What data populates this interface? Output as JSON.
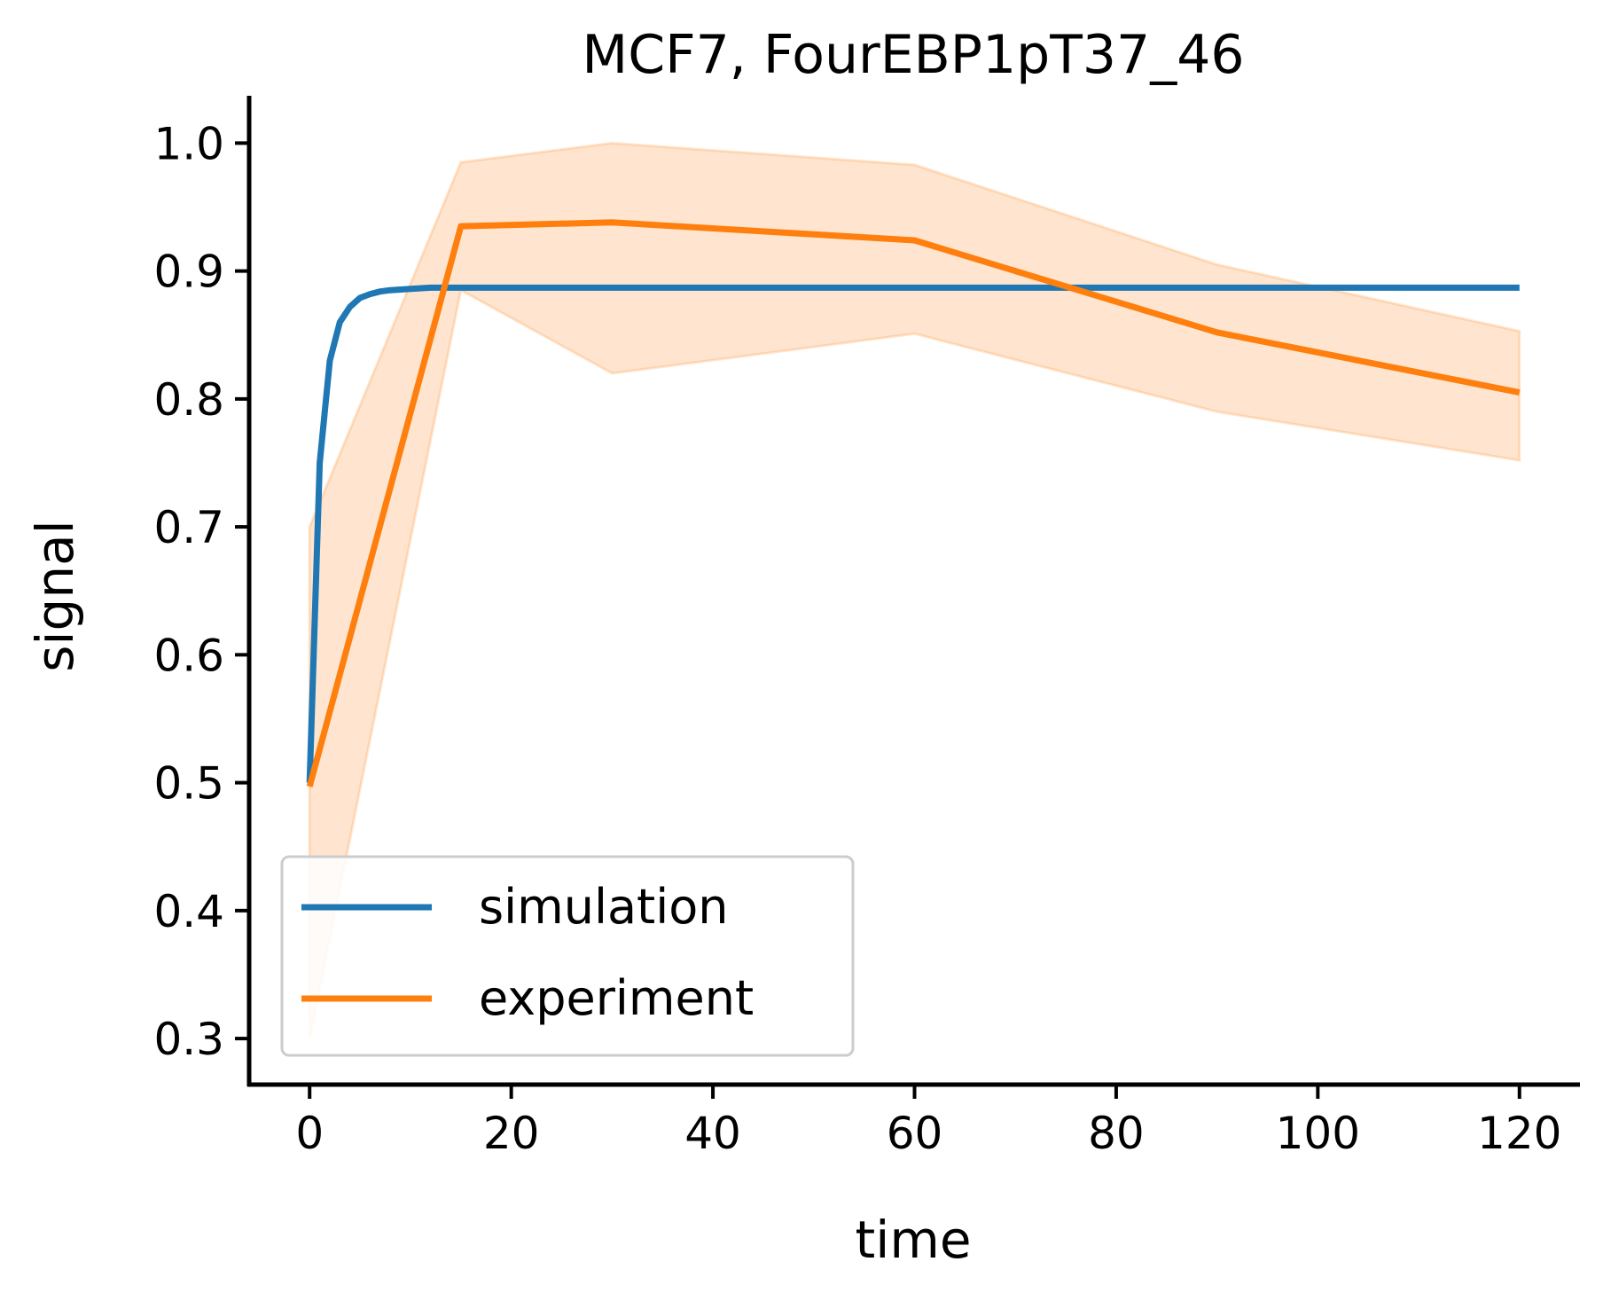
{
  "chart_data": {
    "type": "line",
    "title": "MCF7, FourEBP1pT37_46",
    "xlabel": "time",
    "ylabel": "signal",
    "xlim": [
      -6,
      126
    ],
    "ylim": [
      0.264,
      1.037
    ],
    "xticks": [
      0,
      20,
      40,
      60,
      80,
      100,
      120
    ],
    "yticks": [
      0.3,
      0.4,
      0.5,
      0.6,
      0.7,
      0.8,
      0.9,
      1.0
    ],
    "xtick_labels": [
      "0",
      "20",
      "40",
      "60",
      "80",
      "100",
      "120"
    ],
    "ytick_labels": [
      "0.3",
      "0.4",
      "0.5",
      "0.6",
      "0.7",
      "0.8",
      "0.9",
      "1.0"
    ],
    "grid": false,
    "legend_position": "lower-left",
    "series": [
      {
        "name": "simulation",
        "color": "#1f77b4",
        "x": [
          0,
          1,
          2,
          3,
          4,
          5,
          6,
          7,
          8,
          10,
          12,
          15,
          20,
          30,
          60,
          90,
          120
        ],
        "y": [
          0.5,
          0.75,
          0.83,
          0.86,
          0.872,
          0.879,
          0.882,
          0.884,
          0.885,
          0.886,
          0.887,
          0.887,
          0.887,
          0.887,
          0.887,
          0.887,
          0.887
        ]
      },
      {
        "name": "experiment",
        "color": "#ff7f0e",
        "x": [
          0,
          15,
          30,
          60,
          90,
          120
        ],
        "y": [
          0.497,
          0.935,
          0.938,
          0.924,
          0.852,
          0.805
        ],
        "band_lower": [
          0.3,
          0.885,
          0.82,
          0.851,
          0.79,
          0.752
        ],
        "band_upper": [
          0.7,
          0.985,
          1.0,
          0.983,
          0.905,
          0.853
        ]
      }
    ]
  }
}
